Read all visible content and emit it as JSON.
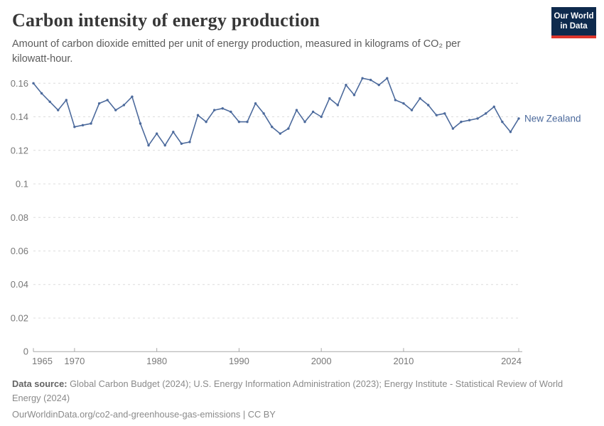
{
  "header": {
    "title": "Carbon intensity of energy production",
    "subtitle": "Amount of carbon dioxide emitted per unit of energy production, measured in kilograms of CO₂ per kilowatt-hour."
  },
  "logo": {
    "line1": "Our World",
    "line2": "in Data",
    "background_color": "#0e2a4d",
    "accent_color": "#dd352c"
  },
  "chart_data": {
    "type": "line",
    "title": "Carbon intensity of energy production",
    "xlabel": "",
    "ylabel": "kilograms of CO₂ per kilowatt-hour",
    "xlim": [
      1965,
      2024
    ],
    "ylim": [
      0,
      0.16
    ],
    "grid": "horizontal-dashed",
    "x_ticks": [
      1965,
      1970,
      1980,
      1990,
      2000,
      2010,
      2024
    ],
    "y_ticks": [
      0,
      0.02,
      0.04,
      0.06,
      0.08,
      0.1,
      0.12,
      0.14,
      0.16
    ],
    "y_tick_labels": [
      "0",
      "0.02",
      "0.04",
      "0.06",
      "0.08",
      "0.1",
      "0.12",
      "0.14",
      "0.16"
    ],
    "legend_position": "end-of-line",
    "series": [
      {
        "name": "New Zealand",
        "color": "#4c6a9c",
        "x": [
          1965,
          1966,
          1967,
          1968,
          1969,
          1970,
          1971,
          1972,
          1973,
          1974,
          1975,
          1976,
          1977,
          1978,
          1979,
          1980,
          1981,
          1982,
          1983,
          1984,
          1985,
          1986,
          1987,
          1988,
          1989,
          1990,
          1991,
          1992,
          1993,
          1994,
          1995,
          1996,
          1997,
          1998,
          1999,
          2000,
          2001,
          2002,
          2003,
          2004,
          2005,
          2006,
          2007,
          2008,
          2009,
          2010,
          2011,
          2012,
          2013,
          2014,
          2015,
          2016,
          2017,
          2018,
          2019,
          2020,
          2021,
          2022,
          2023,
          2024
        ],
        "values": [
          0.16,
          0.154,
          0.149,
          0.144,
          0.15,
          0.134,
          0.135,
          0.136,
          0.148,
          0.15,
          0.144,
          0.147,
          0.152,
          0.136,
          0.123,
          0.13,
          0.123,
          0.131,
          0.124,
          0.125,
          0.141,
          0.137,
          0.144,
          0.145,
          0.143,
          0.137,
          0.137,
          0.148,
          0.142,
          0.134,
          0.13,
          0.133,
          0.144,
          0.137,
          0.143,
          0.14,
          0.151,
          0.147,
          0.159,
          0.153,
          0.163,
          0.162,
          0.159,
          0.163,
          0.15,
          0.148,
          0.144,
          0.151,
          0.147,
          0.141,
          0.142,
          0.133,
          0.137,
          0.138,
          0.139,
          0.142,
          0.146,
          0.137,
          0.131,
          0.139
        ]
      }
    ]
  },
  "footer": {
    "source_label": "Data source:",
    "source_text": " Global Carbon Budget (2024); U.S. Energy Information Administration (2023); Energy Institute - Statistical Review of World Energy (2024)",
    "link": "OurWorldinData.org/co2-and-greenhouse-gas-emissions",
    "separator": " | ",
    "license": "CC BY"
  },
  "colors": {
    "line": "#4c6a9c",
    "gridline": "#dcdcdc",
    "axis": "#a8a8a8",
    "tick_label": "#787878",
    "title_text": "#373737",
    "subtitle_text": "#5c5c5c",
    "footer_text": "#8a8a8a"
  }
}
